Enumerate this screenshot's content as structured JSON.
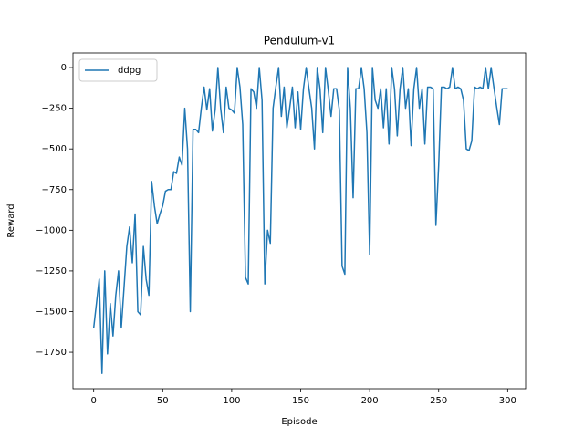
{
  "chart_data": {
    "type": "line",
    "title": "Pendulum-v1",
    "x_label": "Episode",
    "y_label": "Reward",
    "legend": "upper left",
    "xlim": [
      -15,
      313
    ],
    "ylim": [
      -1974,
      90
    ],
    "xticks": [
      0,
      50,
      100,
      150,
      200,
      250,
      300
    ],
    "yticks": [
      0,
      {
        "value": -250,
        "label": "−250"
      },
      {
        "value": -500,
        "label": "−500"
      },
      {
        "value": -750,
        "label": "−750"
      },
      {
        "value": -1000,
        "label": "−1000"
      },
      {
        "value": -1250,
        "label": "−1250"
      },
      {
        "value": -1500,
        "label": "−1500"
      },
      {
        "value": -1750,
        "label": "−1750"
      }
    ],
    "x": [
      0,
      2,
      4,
      6,
      8,
      10,
      12,
      14,
      16,
      18,
      20,
      22,
      24,
      26,
      28,
      30,
      32,
      34,
      36,
      38,
      40,
      42,
      44,
      46,
      48,
      50,
      52,
      54,
      56,
      58,
      60,
      62,
      64,
      66,
      68,
      70,
      72,
      74,
      76,
      78,
      80,
      82,
      84,
      86,
      88,
      90,
      92,
      94,
      96,
      98,
      100,
      102,
      104,
      106,
      108,
      110,
      112,
      114,
      116,
      118,
      120,
      122,
      124,
      126,
      128,
      130,
      132,
      134,
      136,
      138,
      140,
      142,
      144,
      146,
      148,
      150,
      152,
      154,
      156,
      158,
      160,
      162,
      164,
      166,
      168,
      170,
      172,
      174,
      176,
      178,
      180,
      182,
      184,
      186,
      188,
      190,
      192,
      194,
      196,
      198,
      200,
      202,
      204,
      206,
      208,
      210,
      212,
      214,
      216,
      218,
      220,
      222,
      224,
      226,
      228,
      230,
      232,
      234,
      236,
      238,
      240,
      242,
      244,
      246,
      248,
      250,
      252,
      254,
      256,
      258,
      260,
      262,
      264,
      266,
      268,
      270,
      272,
      274,
      276,
      278,
      280,
      282,
      284,
      286,
      288,
      290,
      292,
      294,
      296,
      298,
      300
    ],
    "series": [
      {
        "name": "ddpg",
        "color": "#1f77b4",
        "values": [
          -1600,
          -1450,
          -1300,
          -1880,
          -1250,
          -1760,
          -1450,
          -1650,
          -1400,
          -1250,
          -1600,
          -1350,
          -1100,
          -980,
          -1200,
          -900,
          -1500,
          -1520,
          -1100,
          -1300,
          -1400,
          -700,
          -850,
          -960,
          -900,
          -850,
          -760,
          -750,
          -750,
          -640,
          -650,
          -550,
          -600,
          -250,
          -500,
          -1500,
          -380,
          -380,
          -400,
          -250,
          -120,
          -260,
          -130,
          -390,
          -260,
          0,
          -250,
          -400,
          -120,
          -250,
          -260,
          -280,
          0,
          -120,
          -350,
          -1290,
          -1330,
          -130,
          -150,
          -250,
          0,
          -200,
          -1330,
          -1000,
          -1080,
          -250,
          -120,
          0,
          -300,
          -120,
          -370,
          -250,
          -120,
          -370,
          -150,
          -380,
          -130,
          0,
          -130,
          -250,
          -500,
          0,
          -130,
          -400,
          0,
          -140,
          -300,
          -130,
          -130,
          -260,
          -1220,
          -1270,
          0,
          -250,
          -800,
          -130,
          -130,
          0,
          -130,
          -400,
          -1150,
          0,
          -200,
          -250,
          -130,
          -370,
          -130,
          -470,
          0,
          -130,
          -420,
          -130,
          0,
          -250,
          -130,
          -480,
          -130,
          0,
          -250,
          -130,
          -470,
          -120,
          -120,
          -130,
          -970,
          -600,
          -120,
          -120,
          -130,
          -120,
          0,
          -130,
          -120,
          -130,
          -200,
          -500,
          -510,
          -450,
          -120,
          -130,
          -120,
          -130,
          0,
          -130,
          0,
          -120,
          -240,
          -350,
          -130,
          -130,
          -130
        ]
      }
    ]
  }
}
